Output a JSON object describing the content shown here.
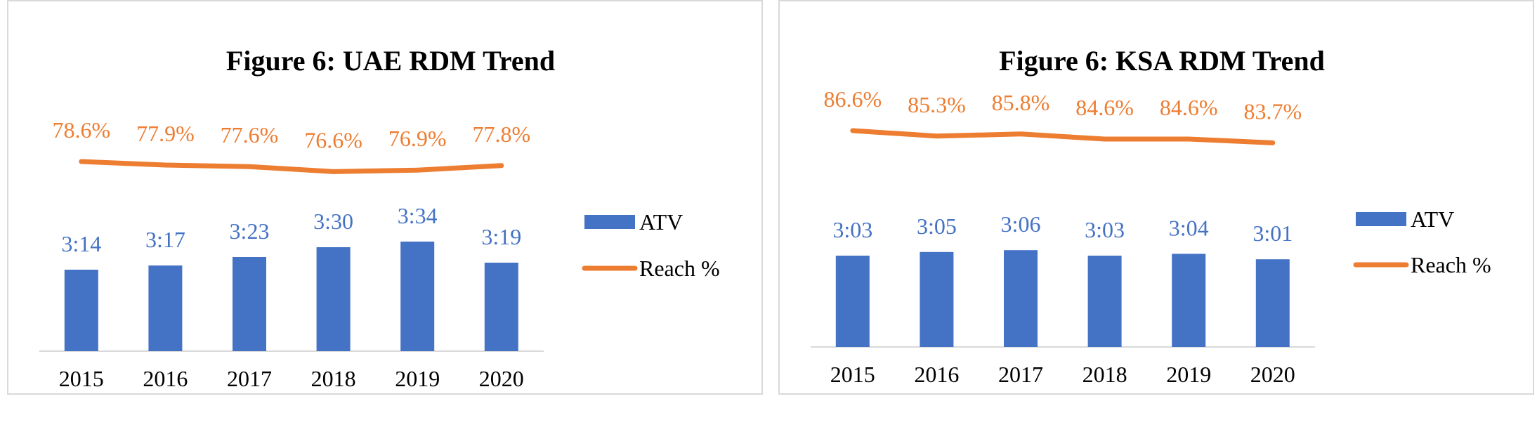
{
  "colors": {
    "bar": "#4472c4",
    "line": "#ed7d31",
    "axis": "#d9d9d9",
    "border": "#d9d9d9"
  },
  "chart_data": [
    {
      "type": "bar",
      "title": "Figure 6: UAE RDM Trend",
      "categories": [
        "2015",
        "2016",
        "2017",
        "2018",
        "2019",
        "2020"
      ],
      "series": [
        {
          "name": "ATV",
          "type": "bar",
          "values": [
            "3:14",
            "3:17",
            "3:23",
            "3:30",
            "3:34",
            "3:19"
          ],
          "values_seconds": [
            194,
            197,
            203,
            210,
            214,
            199
          ]
        },
        {
          "name": "Reach %",
          "type": "line",
          "values": [
            78.6,
            77.9,
            77.6,
            76.6,
            76.9,
            77.8
          ],
          "labels": [
            "78.6%",
            "77.9%",
            "77.6%",
            "76.6%",
            "76.9%",
            "77.8%"
          ]
        }
      ],
      "legend": "right",
      "grid": false
    },
    {
      "type": "bar",
      "title": "Figure 6: KSA RDM Trend",
      "categories": [
        "2015",
        "2016",
        "2017",
        "2018",
        "2019",
        "2020"
      ],
      "series": [
        {
          "name": "ATV",
          "type": "bar",
          "values": [
            "3:03",
            "3:05",
            "3:06",
            "3:03",
            "3:04",
            "3:01"
          ],
          "values_seconds": [
            183,
            185,
            186,
            183,
            184,
            181
          ]
        },
        {
          "name": "Reach %",
          "type": "line",
          "values": [
            86.6,
            85.3,
            85.8,
            84.6,
            84.6,
            83.7
          ],
          "labels": [
            "86.6%",
            "85.3%",
            "85.8%",
            "84.6%",
            "84.6%",
            "83.7%"
          ]
        }
      ],
      "legend": "right",
      "grid": false
    }
  ]
}
